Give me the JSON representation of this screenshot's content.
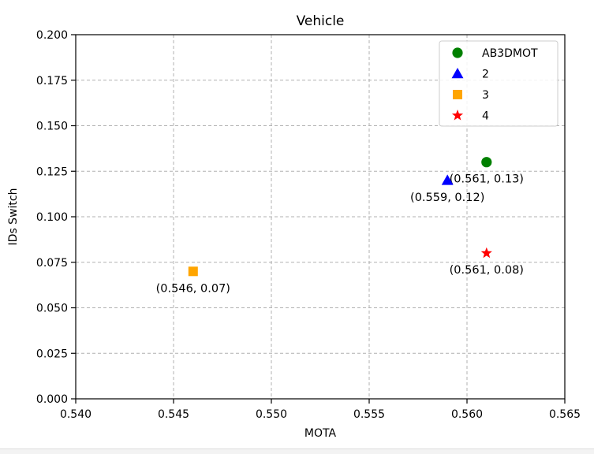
{
  "chart_data": {
    "type": "scatter",
    "title": "Vehicle",
    "xlabel": "MOTA",
    "ylabel": "IDs Switch",
    "xlim": [
      0.54,
      0.565
    ],
    "ylim": [
      0.0,
      0.2
    ],
    "xticks": [
      0.54,
      0.545,
      0.55,
      0.555,
      0.56,
      0.565
    ],
    "xtick_labels": [
      "0.540",
      "0.545",
      "0.550",
      "0.555",
      "0.560",
      "0.565"
    ],
    "yticks": [
      0.0,
      0.025,
      0.05,
      0.075,
      0.1,
      0.125,
      0.15,
      0.175,
      0.2
    ],
    "ytick_labels": [
      "0.000",
      "0.025",
      "0.050",
      "0.075",
      "0.100",
      "0.125",
      "0.150",
      "0.175",
      "0.200"
    ],
    "grid": true,
    "legend_position": "top-right",
    "series": [
      {
        "name": "AB3DMOT",
        "marker": "circle",
        "color": "#008000",
        "x": [
          0.561
        ],
        "y": [
          0.13
        ],
        "annotation": "(0.561, 0.13)"
      },
      {
        "name": "2",
        "marker": "triangle",
        "color": "#0000ff",
        "x": [
          0.559
        ],
        "y": [
          0.12
        ],
        "annotation": "(0.559, 0.12)"
      },
      {
        "name": "3",
        "marker": "square",
        "color": "#ffa500",
        "x": [
          0.546
        ],
        "y": [
          0.07
        ],
        "annotation": "(0.546, 0.07)"
      },
      {
        "name": "4",
        "marker": "star",
        "color": "#ff0000",
        "x": [
          0.561
        ],
        "y": [
          0.08
        ],
        "annotation": "(0.561, 0.08)"
      }
    ]
  }
}
